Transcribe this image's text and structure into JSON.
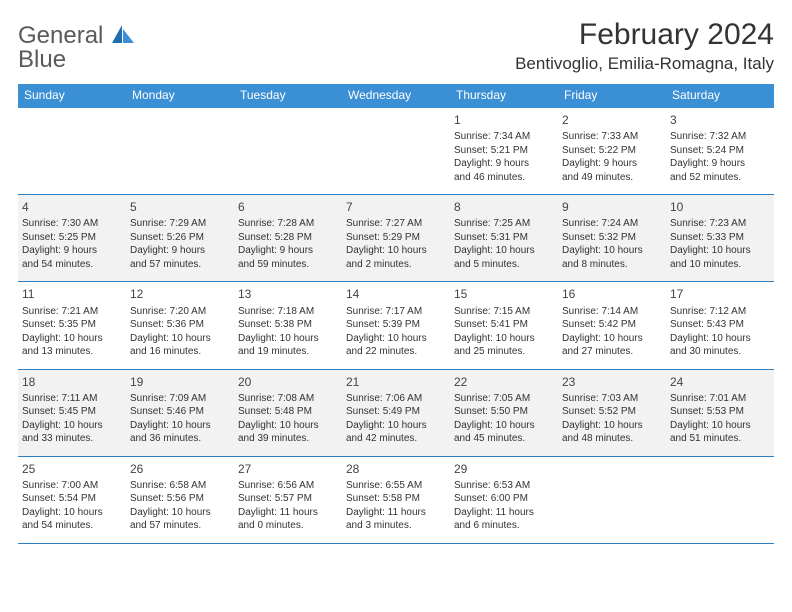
{
  "logo": {
    "text_gray": "General",
    "text_blue": "Blue"
  },
  "title": "February 2024",
  "location": "Bentivoglio, Emilia-Romagna, Italy",
  "colors": {
    "header_bg": "#3b8fd4",
    "header_text": "#ffffff",
    "row_divider": "#2a7dc0",
    "alt_row_bg": "#f2f2f2",
    "text": "#333333",
    "logo_gray": "#5a5a5a",
    "logo_blue": "#2a7dc0"
  },
  "day_headers": [
    "Sunday",
    "Monday",
    "Tuesday",
    "Wednesday",
    "Thursday",
    "Friday",
    "Saturday"
  ],
  "weeks": [
    {
      "alt": false,
      "days": [
        null,
        null,
        null,
        null,
        {
          "num": "1",
          "sunrise": "Sunrise: 7:34 AM",
          "sunset": "Sunset: 5:21 PM",
          "daylight1": "Daylight: 9 hours",
          "daylight2": "and 46 minutes."
        },
        {
          "num": "2",
          "sunrise": "Sunrise: 7:33 AM",
          "sunset": "Sunset: 5:22 PM",
          "daylight1": "Daylight: 9 hours",
          "daylight2": "and 49 minutes."
        },
        {
          "num": "3",
          "sunrise": "Sunrise: 7:32 AM",
          "sunset": "Sunset: 5:24 PM",
          "daylight1": "Daylight: 9 hours",
          "daylight2": "and 52 minutes."
        }
      ]
    },
    {
      "alt": true,
      "days": [
        {
          "num": "4",
          "sunrise": "Sunrise: 7:30 AM",
          "sunset": "Sunset: 5:25 PM",
          "daylight1": "Daylight: 9 hours",
          "daylight2": "and 54 minutes."
        },
        {
          "num": "5",
          "sunrise": "Sunrise: 7:29 AM",
          "sunset": "Sunset: 5:26 PM",
          "daylight1": "Daylight: 9 hours",
          "daylight2": "and 57 minutes."
        },
        {
          "num": "6",
          "sunrise": "Sunrise: 7:28 AM",
          "sunset": "Sunset: 5:28 PM",
          "daylight1": "Daylight: 9 hours",
          "daylight2": "and 59 minutes."
        },
        {
          "num": "7",
          "sunrise": "Sunrise: 7:27 AM",
          "sunset": "Sunset: 5:29 PM",
          "daylight1": "Daylight: 10 hours",
          "daylight2": "and 2 minutes."
        },
        {
          "num": "8",
          "sunrise": "Sunrise: 7:25 AM",
          "sunset": "Sunset: 5:31 PM",
          "daylight1": "Daylight: 10 hours",
          "daylight2": "and 5 minutes."
        },
        {
          "num": "9",
          "sunrise": "Sunrise: 7:24 AM",
          "sunset": "Sunset: 5:32 PM",
          "daylight1": "Daylight: 10 hours",
          "daylight2": "and 8 minutes."
        },
        {
          "num": "10",
          "sunrise": "Sunrise: 7:23 AM",
          "sunset": "Sunset: 5:33 PM",
          "daylight1": "Daylight: 10 hours",
          "daylight2": "and 10 minutes."
        }
      ]
    },
    {
      "alt": false,
      "days": [
        {
          "num": "11",
          "sunrise": "Sunrise: 7:21 AM",
          "sunset": "Sunset: 5:35 PM",
          "daylight1": "Daylight: 10 hours",
          "daylight2": "and 13 minutes."
        },
        {
          "num": "12",
          "sunrise": "Sunrise: 7:20 AM",
          "sunset": "Sunset: 5:36 PM",
          "daylight1": "Daylight: 10 hours",
          "daylight2": "and 16 minutes."
        },
        {
          "num": "13",
          "sunrise": "Sunrise: 7:18 AM",
          "sunset": "Sunset: 5:38 PM",
          "daylight1": "Daylight: 10 hours",
          "daylight2": "and 19 minutes."
        },
        {
          "num": "14",
          "sunrise": "Sunrise: 7:17 AM",
          "sunset": "Sunset: 5:39 PM",
          "daylight1": "Daylight: 10 hours",
          "daylight2": "and 22 minutes."
        },
        {
          "num": "15",
          "sunrise": "Sunrise: 7:15 AM",
          "sunset": "Sunset: 5:41 PM",
          "daylight1": "Daylight: 10 hours",
          "daylight2": "and 25 minutes."
        },
        {
          "num": "16",
          "sunrise": "Sunrise: 7:14 AM",
          "sunset": "Sunset: 5:42 PM",
          "daylight1": "Daylight: 10 hours",
          "daylight2": "and 27 minutes."
        },
        {
          "num": "17",
          "sunrise": "Sunrise: 7:12 AM",
          "sunset": "Sunset: 5:43 PM",
          "daylight1": "Daylight: 10 hours",
          "daylight2": "and 30 minutes."
        }
      ]
    },
    {
      "alt": true,
      "days": [
        {
          "num": "18",
          "sunrise": "Sunrise: 7:11 AM",
          "sunset": "Sunset: 5:45 PM",
          "daylight1": "Daylight: 10 hours",
          "daylight2": "and 33 minutes."
        },
        {
          "num": "19",
          "sunrise": "Sunrise: 7:09 AM",
          "sunset": "Sunset: 5:46 PM",
          "daylight1": "Daylight: 10 hours",
          "daylight2": "and 36 minutes."
        },
        {
          "num": "20",
          "sunrise": "Sunrise: 7:08 AM",
          "sunset": "Sunset: 5:48 PM",
          "daylight1": "Daylight: 10 hours",
          "daylight2": "and 39 minutes."
        },
        {
          "num": "21",
          "sunrise": "Sunrise: 7:06 AM",
          "sunset": "Sunset: 5:49 PM",
          "daylight1": "Daylight: 10 hours",
          "daylight2": "and 42 minutes."
        },
        {
          "num": "22",
          "sunrise": "Sunrise: 7:05 AM",
          "sunset": "Sunset: 5:50 PM",
          "daylight1": "Daylight: 10 hours",
          "daylight2": "and 45 minutes."
        },
        {
          "num": "23",
          "sunrise": "Sunrise: 7:03 AM",
          "sunset": "Sunset: 5:52 PM",
          "daylight1": "Daylight: 10 hours",
          "daylight2": "and 48 minutes."
        },
        {
          "num": "24",
          "sunrise": "Sunrise: 7:01 AM",
          "sunset": "Sunset: 5:53 PM",
          "daylight1": "Daylight: 10 hours",
          "daylight2": "and 51 minutes."
        }
      ]
    },
    {
      "alt": false,
      "days": [
        {
          "num": "25",
          "sunrise": "Sunrise: 7:00 AM",
          "sunset": "Sunset: 5:54 PM",
          "daylight1": "Daylight: 10 hours",
          "daylight2": "and 54 minutes."
        },
        {
          "num": "26",
          "sunrise": "Sunrise: 6:58 AM",
          "sunset": "Sunset: 5:56 PM",
          "daylight1": "Daylight: 10 hours",
          "daylight2": "and 57 minutes."
        },
        {
          "num": "27",
          "sunrise": "Sunrise: 6:56 AM",
          "sunset": "Sunset: 5:57 PM",
          "daylight1": "Daylight: 11 hours",
          "daylight2": "and 0 minutes."
        },
        {
          "num": "28",
          "sunrise": "Sunrise: 6:55 AM",
          "sunset": "Sunset: 5:58 PM",
          "daylight1": "Daylight: 11 hours",
          "daylight2": "and 3 minutes."
        },
        {
          "num": "29",
          "sunrise": "Sunrise: 6:53 AM",
          "sunset": "Sunset: 6:00 PM",
          "daylight1": "Daylight: 11 hours",
          "daylight2": "and 6 minutes."
        },
        null,
        null
      ]
    }
  ]
}
